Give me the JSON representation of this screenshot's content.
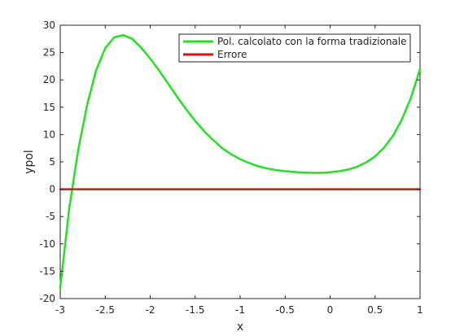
{
  "chart_data": {
    "type": "line",
    "title": "",
    "xlabel": "x",
    "ylabel": "ypol",
    "xlim": [
      -3,
      1
    ],
    "ylim": [
      -20,
      30
    ],
    "xticks": [
      -3,
      -2.5,
      -2,
      -1.5,
      -1,
      -0.5,
      0,
      0.5,
      1
    ],
    "xtick_labels": [
      "-3",
      "-2.5",
      "-2",
      "-1.5",
      "-1",
      "-0.5",
      "0",
      "0.5",
      "1"
    ],
    "yticks": [
      -20,
      -15,
      -10,
      -5,
      0,
      5,
      10,
      15,
      20,
      25,
      30
    ],
    "ytick_labels": [
      "-20",
      "-15",
      "-10",
      "-5",
      "0",
      "5",
      "10",
      "15",
      "20",
      "25",
      "30"
    ],
    "grid": false,
    "legend_position": "top-right",
    "series": [
      {
        "name": "Pol. calcolato con la forma tradizionale",
        "color": "#22e022",
        "x": [
          -3,
          -2.9,
          -2.8,
          -2.7,
          -2.6,
          -2.5,
          -2.4,
          -2.3,
          -2.2,
          -2.1,
          -2,
          -1.9,
          -1.8,
          -1.7,
          -1.6,
          -1.5,
          -1.4,
          -1.3,
          -1.2,
          -1.1,
          -1,
          -0.9,
          -0.8,
          -0.7,
          -0.6,
          -0.5,
          -0.4,
          -0.3,
          -0.2,
          -0.1,
          0,
          0.1,
          0.2,
          0.3,
          0.4,
          0.5,
          0.6,
          0.7,
          0.8,
          0.9,
          1
        ],
        "y": [
          -18,
          -3.5,
          7.2,
          15.5,
          21.8,
          25.8,
          27.8,
          28.2,
          27.5,
          25.9,
          23.9,
          21.7,
          19.3,
          16.9,
          14.6,
          12.5,
          10.6,
          9.0,
          7.5,
          6.4,
          5.5,
          4.8,
          4.2,
          3.8,
          3.5,
          3.3,
          3.15,
          3.05,
          3.0,
          3.0,
          3.1,
          3.3,
          3.6,
          4.1,
          4.9,
          6.0,
          7.6,
          9.8,
          12.8,
          16.8,
          22.0
        ]
      },
      {
        "name": "Errore",
        "color": "#dd1111",
        "x": [
          -3,
          1
        ],
        "y": [
          0,
          0
        ]
      }
    ]
  }
}
